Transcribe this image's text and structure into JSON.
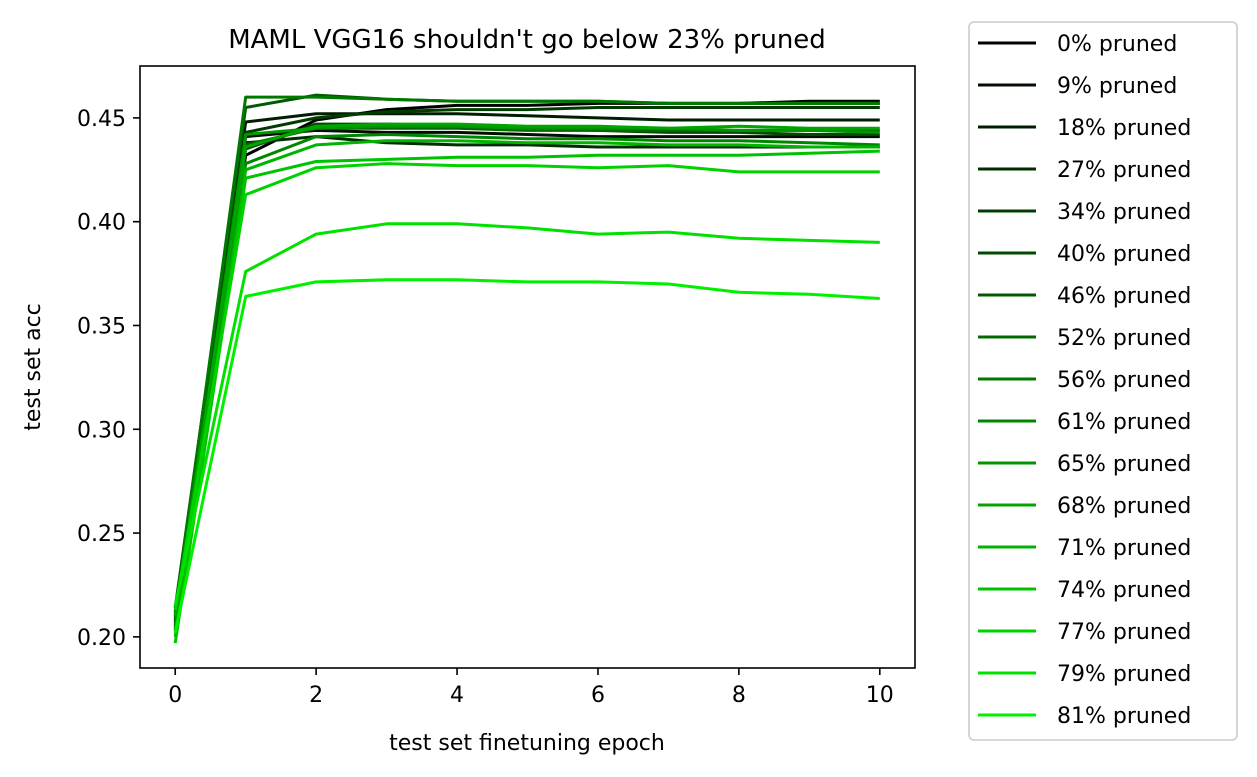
{
  "chart_data": {
    "type": "line",
    "title": "MAML VGG16 shouldn't go below 23% pruned",
    "xlabel": "test set finetuning epoch",
    "ylabel": "test set acc",
    "xlim": [
      -0.5,
      10.5
    ],
    "ylim": [
      0.185,
      0.475
    ],
    "xticks": [
      0,
      2,
      4,
      6,
      8,
      10
    ],
    "yticks": [
      0.2,
      0.25,
      0.3,
      0.35,
      0.4,
      0.45
    ],
    "grid": false,
    "legend_position": "outside-right",
    "x": [
      0,
      1,
      2,
      3,
      4,
      5,
      6,
      7,
      8,
      9,
      10
    ],
    "series": [
      {
        "name": "0% pruned",
        "color": "#000000",
        "values": [
          0.205,
          0.432,
          0.449,
          0.454,
          0.456,
          0.456,
          0.457,
          0.457,
          0.457,
          0.458,
          0.458
        ]
      },
      {
        "name": "9% pruned",
        "color": "#000f00",
        "values": [
          0.207,
          0.441,
          0.444,
          0.443,
          0.443,
          0.442,
          0.441,
          0.441,
          0.441,
          0.441,
          0.441
        ]
      },
      {
        "name": "18% pruned",
        "color": "#001e00",
        "values": [
          0.21,
          0.448,
          0.452,
          0.452,
          0.452,
          0.451,
          0.45,
          0.449,
          0.449,
          0.449,
          0.449
        ]
      },
      {
        "name": "27% pruned",
        "color": "#002d00",
        "values": [
          0.203,
          0.438,
          0.441,
          0.438,
          0.437,
          0.437,
          0.436,
          0.436,
          0.436,
          0.436,
          0.436
        ]
      },
      {
        "name": "34% pruned",
        "color": "#003c00",
        "values": [
          0.212,
          0.443,
          0.45,
          0.453,
          0.454,
          0.454,
          0.455,
          0.455,
          0.455,
          0.455,
          0.455
        ]
      },
      {
        "name": "40% pruned",
        "color": "#004b00",
        "values": [
          0.208,
          0.435,
          0.447,
          0.447,
          0.446,
          0.445,
          0.444,
          0.443,
          0.443,
          0.442,
          0.442
        ]
      },
      {
        "name": "46% pruned",
        "color": "#005a00",
        "values": [
          0.214,
          0.455,
          0.461,
          0.459,
          0.458,
          0.458,
          0.458,
          0.457,
          0.457,
          0.457,
          0.457
        ]
      },
      {
        "name": "52% pruned",
        "color": "#006900",
        "values": [
          0.209,
          0.437,
          0.445,
          0.445,
          0.445,
          0.444,
          0.444,
          0.444,
          0.444,
          0.444,
          0.444
        ]
      },
      {
        "name": "56% pruned",
        "color": "#007800",
        "values": [
          0.211,
          0.46,
          0.46,
          0.459,
          0.458,
          0.458,
          0.458,
          0.457,
          0.457,
          0.457,
          0.457
        ]
      },
      {
        "name": "61% pruned",
        "color": "#008700",
        "values": [
          0.206,
          0.428,
          0.441,
          0.442,
          0.441,
          0.44,
          0.44,
          0.439,
          0.439,
          0.438,
          0.437
        ]
      },
      {
        "name": "65% pruned",
        "color": "#009600",
        "values": [
          0.204,
          0.442,
          0.445,
          0.446,
          0.446,
          0.445,
          0.445,
          0.445,
          0.444,
          0.444,
          0.443
        ]
      },
      {
        "name": "68% pruned",
        "color": "#00a500",
        "values": [
          0.21,
          0.436,
          0.446,
          0.447,
          0.447,
          0.446,
          0.446,
          0.445,
          0.446,
          0.445,
          0.445
        ]
      },
      {
        "name": "71% pruned",
        "color": "#00b400",
        "values": [
          0.2,
          0.425,
          0.437,
          0.439,
          0.439,
          0.438,
          0.438,
          0.437,
          0.437,
          0.436,
          0.436
        ]
      },
      {
        "name": "74% pruned",
        "color": "#00c300",
        "values": [
          0.197,
          0.421,
          0.429,
          0.43,
          0.431,
          0.431,
          0.432,
          0.432,
          0.432,
          0.433,
          0.434
        ]
      },
      {
        "name": "77% pruned",
        "color": "#00d200",
        "values": [
          0.213,
          0.413,
          0.426,
          0.428,
          0.427,
          0.427,
          0.426,
          0.427,
          0.424,
          0.424,
          0.424
        ]
      },
      {
        "name": "79% pruned",
        "color": "#00e100",
        "values": [
          0.215,
          0.376,
          0.394,
          0.399,
          0.399,
          0.397,
          0.394,
          0.395,
          0.392,
          0.391,
          0.39
        ]
      },
      {
        "name": "81% pruned",
        "color": "#00f000",
        "values": [
          0.202,
          0.364,
          0.371,
          0.372,
          0.372,
          0.371,
          0.371,
          0.37,
          0.366,
          0.365,
          0.363
        ]
      }
    ]
  }
}
